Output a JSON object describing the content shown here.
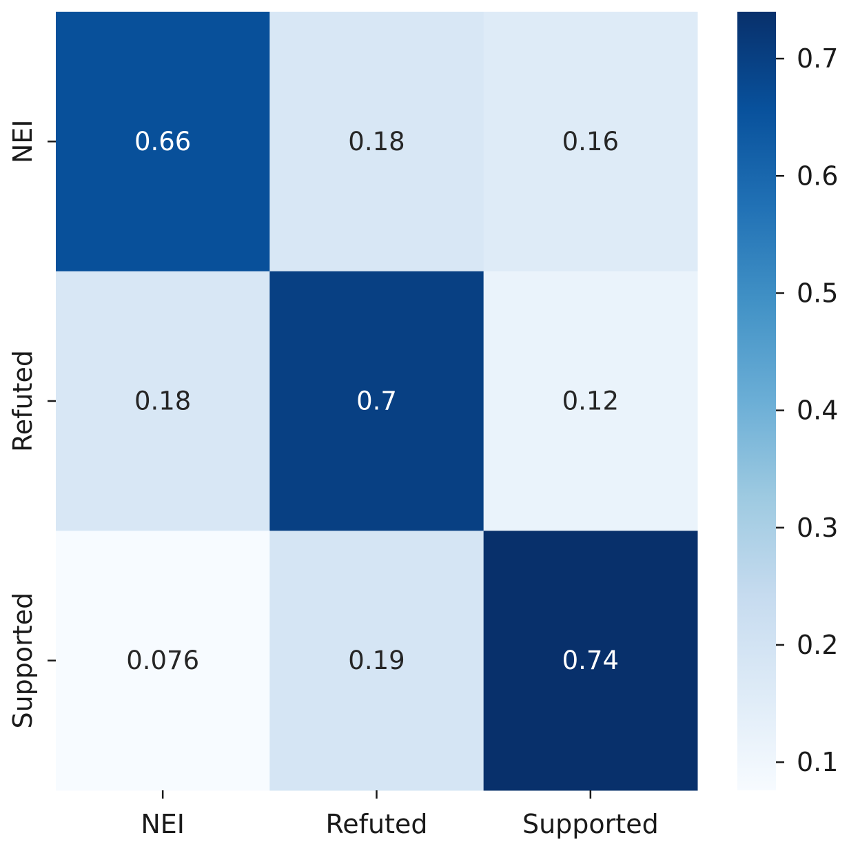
{
  "chart_data": {
    "type": "heatmap",
    "title": "",
    "xlabel": "",
    "ylabel": "",
    "x_categories": [
      "NEI",
      "Refuted",
      "Supported"
    ],
    "y_categories": [
      "NEI",
      "Refuted",
      "Supported"
    ],
    "values": [
      [
        0.66,
        0.18,
        0.16
      ],
      [
        0.18,
        0.7,
        0.12
      ],
      [
        0.076,
        0.19,
        0.74
      ]
    ],
    "annotations": [
      [
        "0.66",
        "0.18",
        "0.16"
      ],
      [
        "0.18",
        "0.7",
        "0.12"
      ],
      [
        "0.076",
        "0.19",
        "0.74"
      ]
    ],
    "colormap": "Blues",
    "colorbar": {
      "range": [
        0.076,
        0.74
      ],
      "ticks": [
        0.1,
        0.2,
        0.3,
        0.4,
        0.5,
        0.6,
        0.7
      ],
      "tick_labels": [
        "0.1",
        "0.2",
        "0.3",
        "0.4",
        "0.5",
        "0.6",
        "0.7"
      ]
    },
    "text_colors": {
      "dark_cell_text": "#ffffff",
      "light_cell_text": "#262626"
    },
    "grid": false,
    "legend": "colorbar-right"
  }
}
